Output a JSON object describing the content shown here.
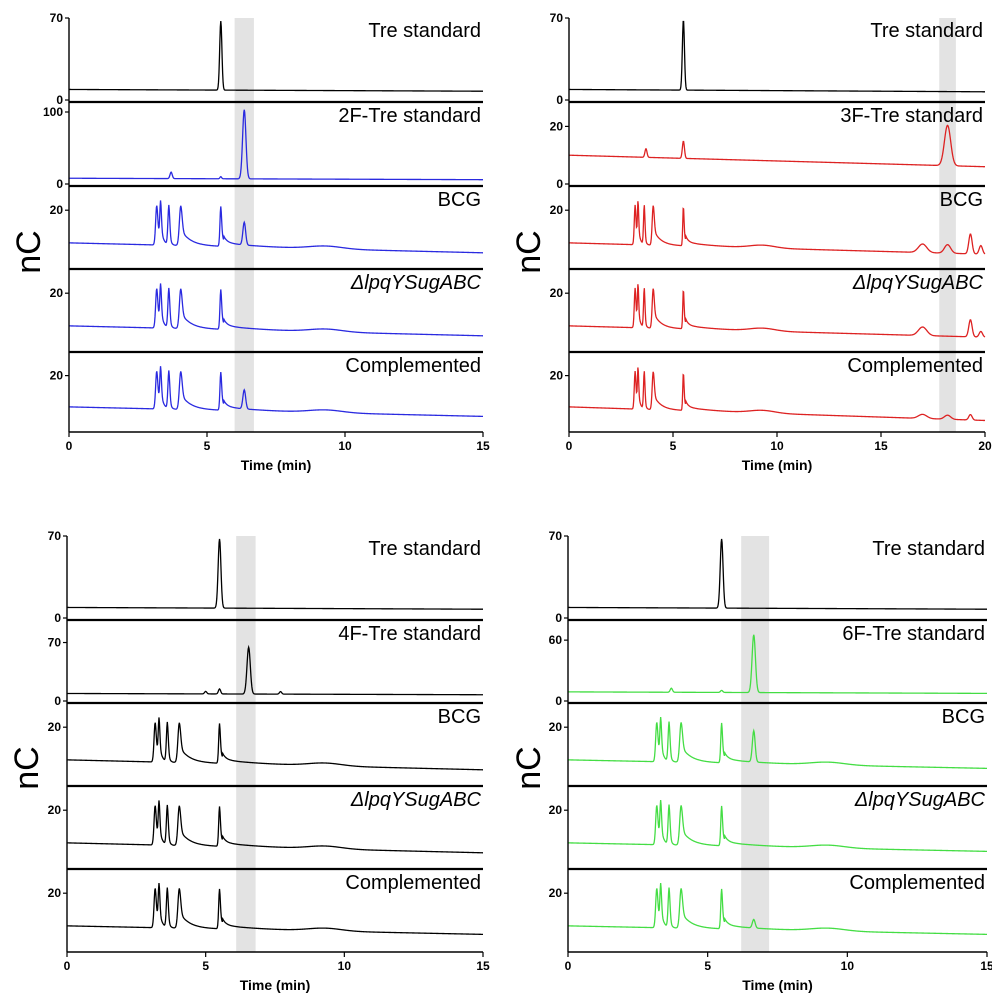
{
  "chart_data": [
    {
      "type": "line",
      "xlabel": "Time (min)",
      "ylabel": "nC",
      "xlim": [
        0,
        15
      ],
      "x_ticks": [
        0,
        5,
        10,
        15
      ],
      "highlight": {
        "x_range": [
          6.0,
          6.7
        ],
        "color": "#e3e3e3"
      },
      "traces": [
        {
          "name": "Tre standard",
          "color": "#000000",
          "ylim": [
            0,
            70
          ],
          "y_ticks": [
            0,
            70
          ],
          "baseline": 9,
          "drift": 1.5,
          "peaks": [
            {
              "x": 5.5,
              "height": 59,
              "width": 0.04
            }
          ]
        },
        {
          "name": "2F-Tre standard",
          "color": "#2a2ae0",
          "ylim": [
            0,
            100
          ],
          "y_ticks": [
            0,
            100
          ],
          "baseline": 8,
          "drift": 2,
          "peaks": [
            {
              "x": 3.7,
              "height": 9,
              "width": 0.04
            },
            {
              "x": 5.5,
              "height": 3,
              "width": 0.03
            },
            {
              "x": 6.35,
              "height": 96,
              "width": 0.06
            }
          ]
        },
        {
          "name": "BCG",
          "italic": false,
          "color": "#2a2ae0",
          "ylim": [
            0,
            25
          ],
          "y_ticks": [
            20
          ],
          "baseline": 8.5,
          "drift": 3.5,
          "sample": true,
          "peaks": [
            {
              "x": 6.35,
              "height": 8,
              "width": 0.05
            }
          ]
        },
        {
          "name": "ΔlpqYSugABC",
          "italic": true,
          "color": "#2a2ae0",
          "ylim": [
            0,
            25
          ],
          "y_ticks": [
            20
          ],
          "baseline": 8.5,
          "drift": 3.5,
          "sample": true,
          "peaks": []
        },
        {
          "name": "Complemented",
          "italic": false,
          "color": "#2a2ae0",
          "ylim": [
            0,
            25
          ],
          "y_ticks": [
            20
          ],
          "baseline": 8.5,
          "drift": 3.5,
          "sample": true,
          "peaks": [
            {
              "x": 6.35,
              "height": 7,
              "width": 0.05
            }
          ]
        }
      ]
    },
    {
      "type": "line",
      "xlabel": "Time (min)",
      "ylabel": "nC",
      "xlim": [
        0,
        20
      ],
      "x_ticks": [
        0,
        5,
        10,
        15,
        20
      ],
      "highlight": {
        "x_range": [
          17.8,
          18.6
        ],
        "color": "#e3e3e3"
      },
      "traces": [
        {
          "name": "Tre standard",
          "color": "#000000",
          "ylim": [
            0,
            70
          ],
          "y_ticks": [
            0,
            70
          ],
          "baseline": 9,
          "drift": 2,
          "peaks": [
            {
              "x": 5.5,
              "height": 60,
              "width": 0.05
            }
          ]
        },
        {
          "name": "3F-Tre standard",
          "color": "#dd2222",
          "ylim": [
            0,
            25
          ],
          "y_ticks": [
            0,
            20
          ],
          "baseline": 10,
          "drift": 4,
          "peaks": [
            {
              "x": 3.7,
              "height": 3,
              "width": 0.05
            },
            {
              "x": 5.5,
              "height": 6,
              "width": 0.05
            },
            {
              "x": 18.2,
              "height": 14,
              "width": 0.15
            }
          ]
        },
        {
          "name": "BCG",
          "italic": false,
          "color": "#dd2222",
          "ylim": [
            0,
            25
          ],
          "y_ticks": [
            20
          ],
          "baseline": 8.5,
          "drift": 4,
          "sample": true,
          "peaks": [
            {
              "x": 17.0,
              "height": 3,
              "width": 0.2
            },
            {
              "x": 18.2,
              "height": 3,
              "width": 0.15
            },
            {
              "x": 19.3,
              "height": 7,
              "width": 0.08
            },
            {
              "x": 19.8,
              "height": 3,
              "width": 0.08
            }
          ]
        },
        {
          "name": "ΔlpqYSugABC",
          "italic": true,
          "color": "#dd2222",
          "ylim": [
            0,
            25
          ],
          "y_ticks": [
            20
          ],
          "baseline": 8.5,
          "drift": 4,
          "sample": true,
          "peaks": [
            {
              "x": 17.0,
              "height": 3,
              "width": 0.2
            },
            {
              "x": 19.3,
              "height": 6,
              "width": 0.08
            },
            {
              "x": 19.8,
              "height": 2,
              "width": 0.08
            }
          ]
        },
        {
          "name": "Complemented",
          "italic": false,
          "color": "#dd2222",
          "ylim": [
            0,
            25
          ],
          "y_ticks": [
            20
          ],
          "baseline": 8.5,
          "drift": 5,
          "sample": true,
          "peaks": [
            {
              "x": 17.0,
              "height": 1.5,
              "width": 0.2
            },
            {
              "x": 18.2,
              "height": 1.5,
              "width": 0.15
            },
            {
              "x": 19.3,
              "height": 2,
              "width": 0.08
            }
          ]
        }
      ]
    },
    {
      "type": "line",
      "xlabel": "Time (min)",
      "ylabel": "nC",
      "xlim": [
        0,
        15
      ],
      "x_ticks": [
        0,
        5,
        10,
        15
      ],
      "highlight": {
        "x_range": [
          6.1,
          6.8
        ],
        "color": "#e3e3e3"
      },
      "traces": [
        {
          "name": "Tre standard",
          "color": "#000000",
          "ylim": [
            0,
            70
          ],
          "y_ticks": [
            0,
            70
          ],
          "baseline": 9,
          "drift": 1.5,
          "peaks": [
            {
              "x": 5.5,
              "height": 59,
              "width": 0.05
            }
          ]
        },
        {
          "name": "4F-Tre standard",
          "color": "#000000",
          "ylim": [
            0,
            85
          ],
          "y_ticks": [
            0,
            70
          ],
          "baseline": 9,
          "drift": 1.5,
          "peaks": [
            {
              "x": 5.0,
              "height": 3,
              "width": 0.04
            },
            {
              "x": 5.5,
              "height": 6,
              "width": 0.04
            },
            {
              "x": 6.55,
              "height": 56,
              "width": 0.06
            },
            {
              "x": 7.7,
              "height": 3,
              "width": 0.04
            }
          ]
        },
        {
          "name": "BCG",
          "italic": false,
          "color": "#000000",
          "ylim": [
            0,
            25
          ],
          "y_ticks": [
            20
          ],
          "baseline": 8.5,
          "drift": 3.5,
          "sample": true,
          "peaks": []
        },
        {
          "name": "ΔlpqYSugABC",
          "italic": true,
          "color": "#000000",
          "ylim": [
            0,
            25
          ],
          "y_ticks": [
            20
          ],
          "baseline": 8.5,
          "drift": 3.5,
          "sample": true,
          "peaks": []
        },
        {
          "name": "Complemented",
          "italic": false,
          "color": "#000000",
          "ylim": [
            0,
            25
          ],
          "y_ticks": [
            20
          ],
          "baseline": 8.5,
          "drift": 3,
          "sample": true,
          "peaks": []
        }
      ]
    },
    {
      "type": "line",
      "xlabel": "Time (min)",
      "ylabel": "nC",
      "xlim": [
        0,
        15
      ],
      "x_ticks": [
        0,
        5,
        10,
        15
      ],
      "highlight": {
        "x_range": [
          6.2,
          7.2
        ],
        "color": "#e3e3e3"
      },
      "traces": [
        {
          "name": "Tre standard",
          "color": "#000000",
          "ylim": [
            0,
            70
          ],
          "y_ticks": [
            0,
            70
          ],
          "baseline": 9,
          "drift": 1.5,
          "peaks": [
            {
              "x": 5.5,
              "height": 59,
              "width": 0.05
            }
          ]
        },
        {
          "name": "6F-Tre standard",
          "color": "#44dd44",
          "ylim": [
            0,
            70
          ],
          "y_ticks": [
            0,
            60
          ],
          "baseline": 9,
          "drift": 1.5,
          "peaks": [
            {
              "x": 3.7,
              "height": 4,
              "width": 0.04
            },
            {
              "x": 5.5,
              "height": 2,
              "width": 0.04
            },
            {
              "x": 6.65,
              "height": 57,
              "width": 0.06
            }
          ]
        },
        {
          "name": "BCG",
          "italic": false,
          "color": "#44dd44",
          "ylim": [
            0,
            25
          ],
          "y_ticks": [
            20
          ],
          "baseline": 8.5,
          "drift": 3,
          "sample": true,
          "peaks": [
            {
              "x": 6.65,
              "height": 11,
              "width": 0.05
            }
          ]
        },
        {
          "name": "ΔlpqYSugABC",
          "italic": true,
          "color": "#44dd44",
          "ylim": [
            0,
            25
          ],
          "y_ticks": [
            20
          ],
          "baseline": 8.5,
          "drift": 3,
          "sample": true,
          "peaks": []
        },
        {
          "name": "Complemented",
          "italic": false,
          "color": "#44dd44",
          "ylim": [
            0,
            25
          ],
          "y_ticks": [
            20
          ],
          "baseline": 8.5,
          "drift": 3,
          "sample": true,
          "peaks": [
            {
              "x": 6.65,
              "height": 3,
              "width": 0.05
            }
          ]
        }
      ]
    }
  ]
}
